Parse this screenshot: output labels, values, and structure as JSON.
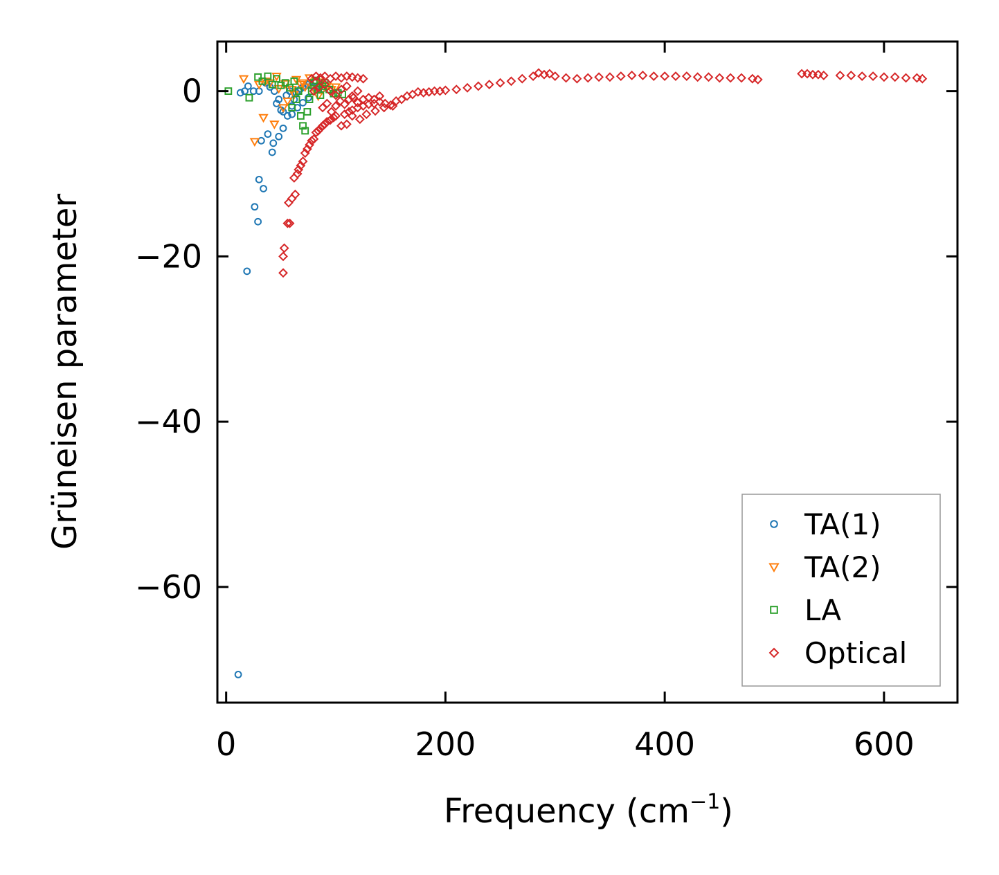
{
  "chart_data": {
    "type": "scatter",
    "title": "",
    "xlabel": "Frequency (cm",
    "xlabel_sup": "−1",
    "xlabel_end": ")",
    "ylabel": "Grüneisen parameter",
    "xlim": [
      -8,
      667
    ],
    "ylim": [
      -74,
      6
    ],
    "xticks": [
      0,
      200,
      400,
      600
    ],
    "xtick_labels": [
      "0",
      "200",
      "400",
      "600"
    ],
    "yticks": [
      0,
      -20,
      -40,
      -60
    ],
    "ytick_labels": [
      "0",
      "−20",
      "−40",
      "−60"
    ],
    "grid": false,
    "legend_position": "lower-right",
    "series": [
      {
        "name": "TA(1)",
        "marker": "circle",
        "color": "#1f77b4",
        "points": [
          [
            11,
            -70.6
          ],
          [
            19,
            -21.8
          ],
          [
            26,
            -14
          ],
          [
            29,
            -15.8
          ],
          [
            30,
            -10.7
          ],
          [
            34,
            -11.8
          ],
          [
            32,
            -6
          ],
          [
            38,
            -5.2
          ],
          [
            42,
            -7.4
          ],
          [
            43,
            -6.3
          ],
          [
            48,
            -5.5
          ],
          [
            52,
            -4.5
          ],
          [
            13,
            -0.2
          ],
          [
            17,
            0
          ],
          [
            20,
            0.6
          ],
          [
            25,
            0
          ],
          [
            30,
            0
          ],
          [
            36,
            1
          ],
          [
            40,
            0.5
          ],
          [
            44,
            0
          ],
          [
            46,
            -1.5
          ],
          [
            48,
            -1
          ],
          [
            50,
            -2.3
          ],
          [
            52,
            -2.5
          ],
          [
            55,
            -0.5
          ],
          [
            58,
            0
          ],
          [
            60,
            -1.8
          ],
          [
            62,
            -1
          ],
          [
            64,
            -0.2
          ],
          [
            66,
            0
          ],
          [
            68,
            0.3
          ],
          [
            70,
            0.5
          ],
          [
            72,
            0.6
          ],
          [
            74,
            0.8
          ],
          [
            76,
            1
          ],
          [
            78,
            0.7
          ],
          [
            80,
            0.4
          ],
          [
            82,
            0.2
          ],
          [
            84,
            0.6
          ],
          [
            86,
            1
          ],
          [
            88,
            0.3
          ],
          [
            65,
            -2
          ],
          [
            70,
            -1.4
          ],
          [
            75,
            -0.8
          ],
          [
            56,
            -3
          ],
          [
            60,
            -2.8
          ]
        ]
      },
      {
        "name": "TA(2)",
        "marker": "triangle-down",
        "color": "#ff7f0e",
        "points": [
          [
            16,
            1.5
          ],
          [
            26,
            -6.1
          ],
          [
            34,
            -3.2
          ],
          [
            40,
            1
          ],
          [
            44,
            -4
          ],
          [
            48,
            0.3
          ],
          [
            52,
            -2
          ],
          [
            56,
            -1.2
          ],
          [
            60,
            0.2
          ],
          [
            64,
            1.4
          ],
          [
            68,
            0.8
          ],
          [
            72,
            0.5
          ],
          [
            76,
            1.6
          ],
          [
            80,
            0.3
          ],
          [
            84,
            -0.6
          ],
          [
            88,
            0.2
          ],
          [
            92,
            0.6
          ],
          [
            30,
            0.8
          ],
          [
            36,
            1.2
          ],
          [
            46,
            1.8
          ],
          [
            54,
            0.9
          ],
          [
            62,
            -0.4
          ],
          [
            70,
            1
          ],
          [
            86,
            1.1
          ],
          [
            96,
            0.2
          ],
          [
            100,
            0.5
          ]
        ]
      },
      {
        "name": "LA",
        "marker": "square",
        "color": "#2ca02c",
        "points": [
          [
            2,
            0
          ],
          [
            21,
            -0.8
          ],
          [
            29,
            1.7
          ],
          [
            33,
            1.2
          ],
          [
            38,
            1.8
          ],
          [
            42,
            0.8
          ],
          [
            46,
            1.5
          ],
          [
            50,
            0.7
          ],
          [
            54,
            1
          ],
          [
            58,
            0.4
          ],
          [
            62,
            1.2
          ],
          [
            66,
            0
          ],
          [
            68,
            -3
          ],
          [
            70,
            -4.2
          ],
          [
            72,
            -4.8
          ],
          [
            74,
            -2.5
          ],
          [
            76,
            -1
          ],
          [
            78,
            0
          ],
          [
            80,
            1
          ],
          [
            82,
            1.3
          ],
          [
            84,
            0.2
          ],
          [
            86,
            -0.5
          ],
          [
            88,
            0.6
          ],
          [
            90,
            1
          ],
          [
            94,
            0.2
          ],
          [
            98,
            -0.3
          ],
          [
            102,
            -0.2
          ],
          [
            106,
            -0.4
          ],
          [
            60,
            -2
          ],
          [
            64,
            -1
          ]
        ]
      },
      {
        "name": "Optical",
        "marker": "diamond",
        "color": "#d62728",
        "points": [
          [
            52,
            -22
          ],
          [
            52,
            -20
          ],
          [
            53,
            -19
          ],
          [
            56,
            -16
          ],
          [
            58,
            -16
          ],
          [
            57,
            -13.5
          ],
          [
            60,
            -13
          ],
          [
            63,
            -12.5
          ],
          [
            62,
            -10.5
          ],
          [
            65,
            -10
          ],
          [
            66,
            -9.5
          ],
          [
            68,
            -9
          ],
          [
            70,
            -8.5
          ],
          [
            72,
            -7.5
          ],
          [
            74,
            -7
          ],
          [
            76,
            -6.5
          ],
          [
            78,
            -6
          ],
          [
            80,
            -5.8
          ],
          [
            82,
            -5
          ],
          [
            84,
            -4.8
          ],
          [
            86,
            -4.5
          ],
          [
            88,
            -4.2
          ],
          [
            90,
            -4
          ],
          [
            92,
            -3.7
          ],
          [
            95,
            -3.5
          ],
          [
            98,
            -3.2
          ],
          [
            100,
            -3
          ],
          [
            105,
            -4.2
          ],
          [
            108,
            -2.8
          ],
          [
            112,
            -2.5
          ],
          [
            115,
            -2.3
          ],
          [
            120,
            -2
          ],
          [
            125,
            -1.8
          ],
          [
            130,
            -1.6
          ],
          [
            135,
            -1.5
          ],
          [
            140,
            -1.3
          ],
          [
            145,
            -1.5
          ],
          [
            150,
            -1.7
          ],
          [
            155,
            -1.2
          ],
          [
            160,
            -1
          ],
          [
            165,
            -0.6
          ],
          [
            170,
            -0.4
          ],
          [
            175,
            -0.1
          ],
          [
            180,
            -0.2
          ],
          [
            185,
            -0.1
          ],
          [
            190,
            0
          ],
          [
            195,
            0
          ],
          [
            200,
            0.1
          ],
          [
            210,
            0.2
          ],
          [
            220,
            0.4
          ],
          [
            230,
            0.6
          ],
          [
            240,
            0.8
          ],
          [
            250,
            1
          ],
          [
            260,
            1.2
          ],
          [
            270,
            1.5
          ],
          [
            280,
            1.8
          ],
          [
            285,
            2.2
          ],
          [
            290,
            2
          ],
          [
            295,
            2.1
          ],
          [
            300,
            1.8
          ],
          [
            310,
            1.6
          ],
          [
            320,
            1.5
          ],
          [
            330,
            1.6
          ],
          [
            340,
            1.7
          ],
          [
            350,
            1.7
          ],
          [
            360,
            1.8
          ],
          [
            370,
            1.9
          ],
          [
            380,
            1.9
          ],
          [
            390,
            1.8
          ],
          [
            400,
            1.8
          ],
          [
            410,
            1.8
          ],
          [
            420,
            1.8
          ],
          [
            430,
            1.7
          ],
          [
            440,
            1.7
          ],
          [
            450,
            1.6
          ],
          [
            460,
            1.6
          ],
          [
            470,
            1.6
          ],
          [
            480,
            1.5
          ],
          [
            485,
            1.4
          ],
          [
            525,
            2.1
          ],
          [
            530,
            2.1
          ],
          [
            535,
            2
          ],
          [
            540,
            2
          ],
          [
            545,
            1.9
          ],
          [
            560,
            1.9
          ],
          [
            570,
            1.9
          ],
          [
            580,
            1.8
          ],
          [
            590,
            1.8
          ],
          [
            600,
            1.7
          ],
          [
            610,
            1.7
          ],
          [
            620,
            1.6
          ],
          [
            630,
            1.6
          ],
          [
            635,
            1.5
          ],
          [
            78,
            1.5
          ],
          [
            82,
            1.8
          ],
          [
            86,
            1.6
          ],
          [
            90,
            1.8
          ],
          [
            95,
            1.5
          ],
          [
            100,
            1.8
          ],
          [
            105,
            1.6
          ],
          [
            110,
            1.8
          ],
          [
            115,
            1.7
          ],
          [
            120,
            1.6
          ],
          [
            125,
            1.5
          ],
          [
            80,
            0
          ],
          [
            85,
            0.5
          ],
          [
            90,
            0.8
          ],
          [
            95,
            0
          ],
          [
            100,
            -0.5
          ],
          [
            105,
            0.2
          ],
          [
            110,
            0.6
          ],
          [
            115,
            -0.6
          ],
          [
            120,
            0
          ],
          [
            88,
            -2
          ],
          [
            92,
            -1.5
          ],
          [
            96,
            -2.5
          ],
          [
            100,
            -1.8
          ],
          [
            104,
            -1.2
          ],
          [
            108,
            -1.6
          ],
          [
            112,
            -1
          ],
          [
            116,
            -0.8
          ],
          [
            120,
            -1.4
          ],
          [
            125,
            -1
          ],
          [
            130,
            -0.8
          ],
          [
            135,
            -1
          ],
          [
            140,
            -0.6
          ],
          [
            110,
            -4
          ],
          [
            115,
            -3
          ],
          [
            122,
            -3.4
          ],
          [
            128,
            -2.8
          ],
          [
            136,
            -2.4
          ],
          [
            144,
            -2
          ],
          [
            152,
            -1.8
          ]
        ]
      }
    ]
  }
}
